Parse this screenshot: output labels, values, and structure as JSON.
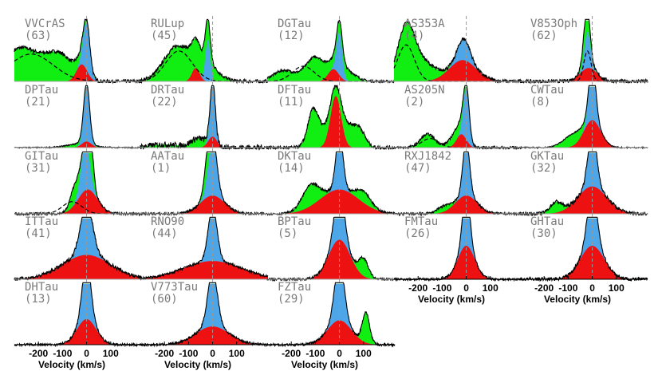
{
  "chart_data": {
    "type": "line",
    "description_units": "normalized flux vs velocity",
    "xlabel": "Velocity (km/s)",
    "xticks": [
      -200,
      -100,
      0,
      100
    ],
    "xlim": [
      -300,
      230
    ],
    "ylim": [
      0,
      1.05
    ],
    "colors": {
      "blue": "#4da6e8",
      "red": "#ee1111",
      "green": "#11ee11",
      "line": "#000000",
      "zero": "#999999",
      "axis": "#aaaaaa"
    },
    "panels": [
      {
        "name": "VVCrAS",
        "n": "(63)",
        "bc": [
          0,
          14,
          0.78
        ],
        "rc": [
          -20,
          22,
          0.28
        ],
        "gc": [
          [
            -270,
            80,
            0.55
          ],
          [
            -110,
            55,
            0.4
          ]
        ],
        "dash": [
          [
            -230,
            90,
            0.45
          ]
        ],
        "noise": 0.03
      },
      {
        "name": "RULup",
        "n": "(45)",
        "bc": [
          -20,
          10,
          0.68
        ],
        "rc": [
          -70,
          16,
          0.22
        ],
        "gc": [
          [
            -150,
            55,
            0.55
          ],
          [
            -40,
            50,
            0.35
          ]
        ],
        "dash": [
          [
            -140,
            55,
            0.5
          ]
        ],
        "noise": 0.03
      },
      {
        "name": "DGTau",
        "n": "(12)",
        "bc": [
          0,
          12,
          0.7
        ],
        "rc": [
          -25,
          22,
          0.2
        ],
        "gc": [
          [
            -100,
            40,
            0.4
          ],
          [
            -230,
            45,
            0.18
          ],
          [
            20,
            40,
            0.2
          ]
        ],
        "dash": [
          [
            -150,
            45,
            0.25
          ]
        ],
        "noise": 0.02
      },
      {
        "name": "AS353A",
        "n": "(4)",
        "bc": [
          -10,
          25,
          0.35
        ],
        "rc": [
          -15,
          55,
          0.35
        ],
        "gc": [
          [
            -250,
            35,
            0.85
          ],
          [
            -180,
            50,
            0.3
          ]
        ],
        "dash": [
          [
            -250,
            35,
            0.6
          ]
        ],
        "noise": 0.03
      },
      {
        "name": "V853Oph",
        "n": "(62)",
        "bc": [
          -20,
          12,
          0.6
        ],
        "rc": [
          -15,
          35,
          0.22
        ],
        "gc": [
          [
            -25,
            15,
            0.4
          ]
        ],
        "dash": [
          [
            -20,
            15,
            0.5
          ]
        ],
        "noise": 0.03
      },
      {
        "name": "DPTau",
        "n": "(21)",
        "bc": [
          0,
          12,
          0.92
        ],
        "rc": [
          0,
          20,
          0.1
        ],
        "gc": [
          [
            -30,
            50,
            0.06
          ]
        ],
        "dash": [],
        "noise": 0.01
      },
      {
        "name": "DRTau",
        "n": "(22)",
        "bc": [
          0,
          10,
          0.92
        ],
        "rc": [
          0,
          18,
          0.18
        ],
        "gc": [
          [
            -200,
            60,
            0.05
          ],
          [
            -60,
            30,
            0.15
          ]
        ],
        "dash": [],
        "noise": 0.05
      },
      {
        "name": "DFTau",
        "n": "(11)",
        "bc": [
          -20,
          8,
          0.0
        ],
        "rc": [
          -15,
          22,
          0.85
        ],
        "gc": [
          [
            -110,
            22,
            0.55
          ],
          [
            30,
            25,
            0.3
          ],
          [
            80,
            25,
            0.32
          ],
          [
            -60,
            35,
            0.25
          ]
        ],
        "dash": [],
        "noise": 0.03
      },
      {
        "name": "AS205N",
        "n": "(2)",
        "bc": [
          0,
          12,
          0.85
        ],
        "rc": [
          -20,
          20,
          0.22
        ],
        "gc": [
          [
            -160,
            30,
            0.22
          ],
          [
            -40,
            30,
            0.2
          ]
        ],
        "dash": [
          [
            -150,
            35,
            0.15
          ]
        ],
        "noise": 0.02
      },
      {
        "name": "CWTau",
        "n": "(8)",
        "bc": [
          0,
          14,
          0.95
        ],
        "rc": [
          0,
          35,
          0.45
        ],
        "gc": [
          [
            -80,
            40,
            0.2
          ]
        ],
        "dash": [],
        "noise": 0.01
      },
      {
        "name": "GITau",
        "n": "(31)",
        "bc": [
          -5,
          18,
          0.78
        ],
        "rc": [
          5,
          40,
          0.4
        ],
        "gc": [
          [
            20,
            10,
            0.5
          ],
          [
            -50,
            18,
            0.3
          ]
        ],
        "dash": [
          [
            -60,
            40,
            0.2
          ]
        ],
        "noise": 0.02
      },
      {
        "name": "AATau",
        "n": "(1)",
        "bc": [
          0,
          18,
          0.9
        ],
        "rc": [
          0,
          50,
          0.3
        ],
        "gc": [
          [
            -20,
            15,
            0.4
          ]
        ],
        "dash": [],
        "noise": 0.02
      },
      {
        "name": "DKTau",
        "n": "(14)",
        "bc": [
          0,
          15,
          0.9
        ],
        "rc": [
          0,
          80,
          0.4
        ],
        "gc": [
          [
            -120,
            35,
            0.35
          ],
          [
            100,
            30,
            0.2
          ]
        ],
        "dash": [],
        "noise": 0.02
      },
      {
        "name": "RXJ1842",
        "n": "(47)",
        "bc": [
          0,
          14,
          0.9
        ],
        "rc": [
          0,
          45,
          0.3
        ],
        "gc": [
          [
            -90,
            30,
            0.1
          ]
        ],
        "dash": [],
        "noise": 0.02
      },
      {
        "name": "GKTau",
        "n": "(32)",
        "bc": [
          0,
          18,
          0.9
        ],
        "rc": [
          0,
          60,
          0.45
        ],
        "gc": [
          [
            -150,
            25,
            0.18
          ]
        ],
        "dash": [],
        "noise": 0.03
      },
      {
        "name": "ITTau",
        "n": "(41)",
        "bc": [
          0,
          25,
          0.85
        ],
        "rc": [
          0,
          100,
          0.4
        ],
        "gc": [],
        "dash": [],
        "noise": 0.03
      },
      {
        "name": "RNO90",
        "n": "(44)",
        "bc": [
          0,
          18,
          0.9
        ],
        "rc": [
          0,
          120,
          0.3
        ],
        "gc": [],
        "dash": [],
        "noise": 0.02
      },
      {
        "name": "BPTau",
        "n": "(5)",
        "bc": [
          0,
          20,
          0.85
        ],
        "rc": [
          0,
          45,
          0.65
        ],
        "gc": [
          [
            100,
            20,
            0.3
          ]
        ],
        "dash": [],
        "noise": 0.02
      },
      {
        "name": "FMTau",
        "n": "(26)",
        "bc": [
          0,
          15,
          0.9
        ],
        "rc": [
          0,
          35,
          0.55
        ],
        "gc": [],
        "dash": [],
        "noise": 0.02
      },
      {
        "name": "GHTau",
        "n": "(30)",
        "bc": [
          0,
          20,
          0.9
        ],
        "rc": [
          0,
          50,
          0.55
        ],
        "gc": [],
        "dash": [],
        "noise": 0.03
      },
      {
        "name": "DHTau",
        "n": "(13)",
        "bc": [
          0,
          18,
          0.95
        ],
        "rc": [
          0,
          40,
          0.42
        ],
        "gc": [],
        "dash": [],
        "noise": 0.02
      },
      {
        "name": "V773Tau",
        "n": "(60)",
        "bc": [
          0,
          20,
          0.9
        ],
        "rc": [
          0,
          70,
          0.3
        ],
        "gc": [],
        "dash": [],
        "noise": 0.02
      },
      {
        "name": "FZTau",
        "n": "(29)",
        "bc": [
          0,
          20,
          0.95
        ],
        "rc": [
          0,
          50,
          0.4
        ],
        "gc": [
          [
            110,
            15,
            0.5
          ]
        ],
        "dash": [],
        "noise": 0.02
      }
    ]
  }
}
